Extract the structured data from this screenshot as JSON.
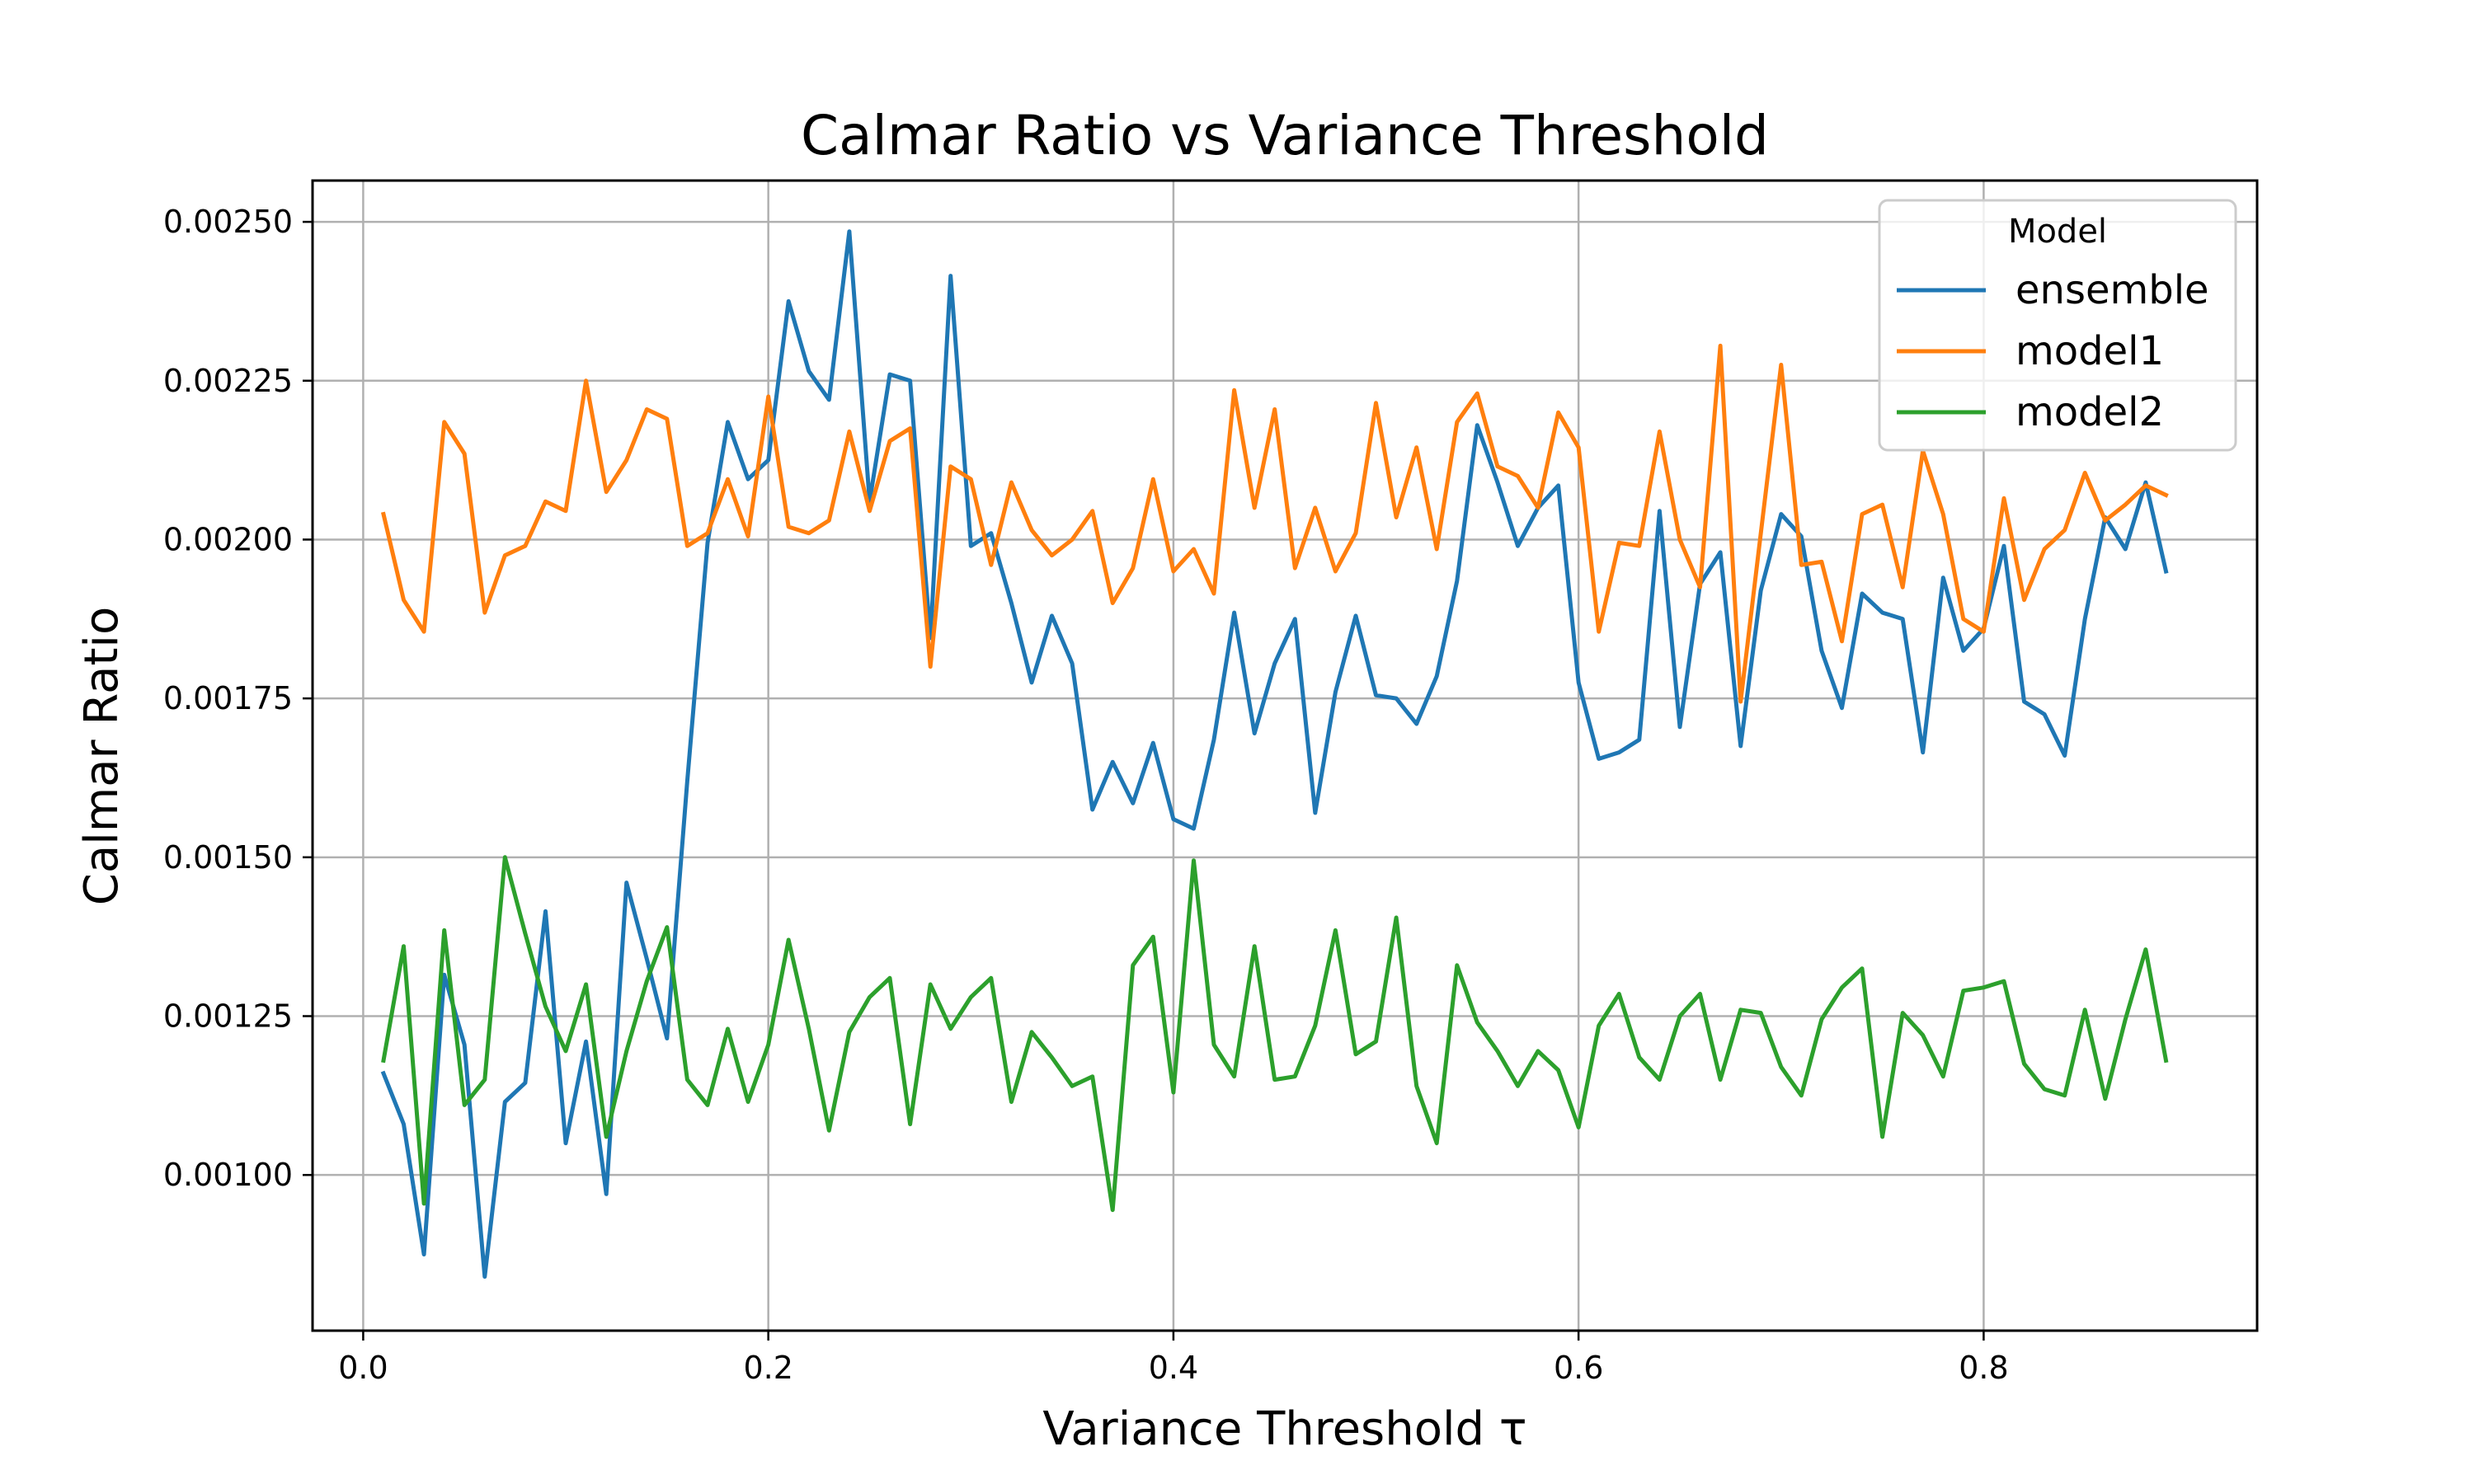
{
  "chart_data": {
    "type": "line",
    "title": "Calmar Ratio vs Variance Threshold",
    "xlabel": "Variance Threshold τ",
    "ylabel": "Calmar Ratio",
    "xlim": [
      -0.025,
      0.935
    ],
    "ylim": [
      0.000755,
      0.002565
    ],
    "grid": true,
    "x_ticks": [
      0.0,
      0.2,
      0.4,
      0.6,
      0.8
    ],
    "x_tick_labels": [
      "0.0",
      "0.2",
      "0.4",
      "0.6",
      "0.8"
    ],
    "y_ticks": [
      0.001,
      0.00125,
      0.0015,
      0.00175,
      0.002,
      0.00225,
      0.0025
    ],
    "y_tick_labels": [
      "0.00100",
      "0.00125",
      "0.00150",
      "0.00175",
      "0.00200",
      "0.00225",
      "0.00250"
    ],
    "legend_title": "Model",
    "legend_position": "top-right",
    "x": [
      0.01,
      0.02,
      0.03,
      0.04,
      0.05,
      0.06,
      0.07,
      0.08,
      0.09,
      0.1,
      0.11,
      0.12,
      0.13,
      0.14,
      0.15,
      0.16,
      0.17,
      0.18,
      0.19,
      0.2,
      0.21,
      0.22,
      0.23,
      0.24,
      0.25,
      0.26,
      0.27,
      0.28,
      0.29,
      0.3,
      0.31,
      0.32,
      0.33,
      0.34,
      0.35,
      0.36,
      0.37,
      0.38,
      0.39,
      0.4,
      0.41,
      0.42,
      0.43,
      0.44,
      0.45,
      0.46,
      0.47,
      0.48,
      0.49,
      0.5,
      0.51,
      0.52,
      0.53,
      0.54,
      0.55,
      0.56,
      0.57,
      0.58,
      0.59,
      0.6,
      0.61,
      0.62,
      0.63,
      0.64,
      0.65,
      0.66,
      0.67,
      0.68,
      0.69,
      0.7,
      0.71,
      0.72,
      0.73,
      0.74,
      0.75,
      0.76,
      0.77,
      0.78,
      0.79,
      0.8,
      0.81,
      0.82,
      0.83,
      0.84,
      0.85,
      0.86,
      0.87,
      0.88,
      0.89
    ],
    "series": [
      {
        "name": "ensemble",
        "color": "#1f77b4",
        "values": [
          0.00116,
          0.00108,
          0.000875,
          0.001315,
          0.001205,
          0.00084,
          0.001115,
          0.001145,
          0.001415,
          0.00105,
          0.00121,
          0.00097,
          0.00146,
          0.00134,
          0.001215,
          0.00162,
          0.001995,
          0.002185,
          0.002095,
          0.002125,
          0.002375,
          0.002265,
          0.00222,
          0.002485,
          0.00206,
          0.00226,
          0.00225,
          0.001845,
          0.002415,
          0.00199,
          0.00201,
          0.0019,
          0.001775,
          0.00188,
          0.001805,
          0.001575,
          0.00165,
          0.001585,
          0.00168,
          0.00156,
          0.001545,
          0.001685,
          0.001885,
          0.001695,
          0.001805,
          0.001875,
          0.00157,
          0.00176,
          0.00188,
          0.001755,
          0.00175,
          0.00171,
          0.001785,
          0.001935,
          0.00218,
          0.00209,
          0.00199,
          0.00205,
          0.002085,
          0.001775,
          0.001655,
          0.001665,
          0.001685,
          0.002045,
          0.001705,
          0.00193,
          0.00198,
          0.001675,
          0.00192,
          0.00204,
          0.002005,
          0.001825,
          0.001735,
          0.001915,
          0.001885,
          0.001875,
          0.001665,
          0.00194,
          0.001825,
          0.00186,
          0.00199,
          0.001745,
          0.001725,
          0.00166,
          0.001875,
          0.002035,
          0.001985,
          0.00209,
          0.00195
        ]
      },
      {
        "name": "model1",
        "color": "#ff7f0e",
        "values": [
          0.00204,
          0.001905,
          0.001855,
          0.002185,
          0.002135,
          0.001885,
          0.001975,
          0.00199,
          0.00206,
          0.002045,
          0.00225,
          0.002075,
          0.002125,
          0.002205,
          0.00219,
          0.00199,
          0.00201,
          0.002095,
          0.002005,
          0.002225,
          0.00202,
          0.00201,
          0.00203,
          0.00217,
          0.002045,
          0.002155,
          0.002175,
          0.0018,
          0.002115,
          0.002095,
          0.00196,
          0.00209,
          0.002015,
          0.001975,
          0.002,
          0.002045,
          0.0019,
          0.001955,
          0.002095,
          0.00195,
          0.001985,
          0.001915,
          0.002235,
          0.00205,
          0.002205,
          0.001955,
          0.00205,
          0.00195,
          0.00201,
          0.002215,
          0.002035,
          0.002145,
          0.001985,
          0.002185,
          0.00223,
          0.002115,
          0.0021,
          0.00205,
          0.0022,
          0.002145,
          0.001855,
          0.001995,
          0.00199,
          0.00217,
          0.002,
          0.001925,
          0.002305,
          0.001745,
          0.00201,
          0.002275,
          0.00196,
          0.001965,
          0.00184,
          0.00204,
          0.002055,
          0.001925,
          0.00214,
          0.00204,
          0.001875,
          0.001855,
          0.002065,
          0.001905,
          0.001985,
          0.002015,
          0.002105,
          0.00203,
          0.002055,
          0.002085,
          0.00207
        ]
      },
      {
        "name": "model2",
        "color": "#2ca02c",
        "values": [
          0.00118,
          0.00136,
          0.000955,
          0.001385,
          0.00111,
          0.00115,
          0.0015,
          0.00138,
          0.001265,
          0.001195,
          0.0013,
          0.00106,
          0.001195,
          0.001305,
          0.00139,
          0.00115,
          0.00111,
          0.00123,
          0.001115,
          0.001205,
          0.00137,
          0.00123,
          0.00107,
          0.001225,
          0.00128,
          0.00131,
          0.00108,
          0.0013,
          0.00123,
          0.00128,
          0.00131,
          0.001115,
          0.001225,
          0.001185,
          0.00114,
          0.001155,
          0.000945,
          0.00133,
          0.001375,
          0.00113,
          0.001495,
          0.001205,
          0.001155,
          0.00136,
          0.00115,
          0.001155,
          0.001235,
          0.001385,
          0.00119,
          0.00121,
          0.001405,
          0.00114,
          0.00105,
          0.00133,
          0.00124,
          0.001195,
          0.00114,
          0.001195,
          0.001165,
          0.001075,
          0.001235,
          0.001285,
          0.001185,
          0.00115,
          0.00125,
          0.001285,
          0.00115,
          0.00126,
          0.001255,
          0.00117,
          0.001125,
          0.001245,
          0.001295,
          0.001325,
          0.00106,
          0.001255,
          0.00122,
          0.001155,
          0.00129,
          0.001295,
          0.001305,
          0.001175,
          0.001135,
          0.001125,
          0.00126,
          0.00112,
          0.001245,
          0.001355,
          0.00118
        ]
      }
    ]
  }
}
